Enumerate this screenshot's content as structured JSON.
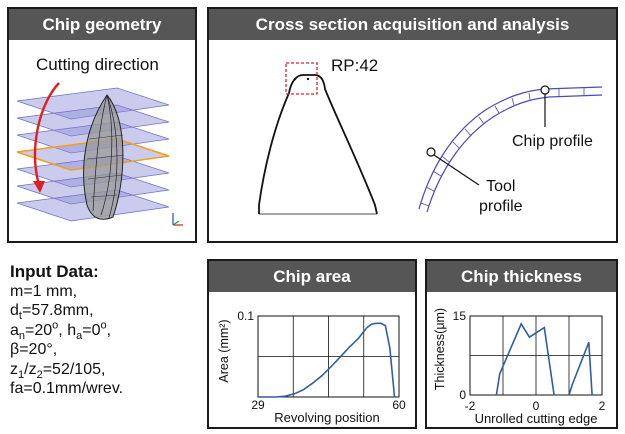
{
  "panels": {
    "geometry": {
      "title": "Chip geometry",
      "cutting_direction": "Cutting direction"
    },
    "cross_section": {
      "title": "Cross section acquisition and analysis",
      "rp_label": "RP:42",
      "chip_profile": "Chip profile",
      "tool_profile_line1": "Tool",
      "tool_profile_line2": "profile"
    },
    "chip_area": {
      "title": "Chip area",
      "ylabel": "Area (mm²)",
      "xlabel": "Revolving position",
      "y_top_tick": "0.1",
      "x_left_tick": "29",
      "x_right_tick": "60"
    },
    "chip_thickness": {
      "title": "Chip thickness",
      "ylabel": "Thickness(μm)",
      "xlabel": "Unrolled cutting edge",
      "y_top_tick": "15",
      "y_bottom_tick": "0",
      "x_left_tick": "-2",
      "x_mid_tick": "0",
      "x_right_tick": "2"
    }
  },
  "input_data": {
    "title": "Input Data:",
    "m": "m=1 mm,",
    "dt_sym": "d",
    "dt_sub": "t",
    "dt_val": "=57.8mm,",
    "an_sym": "a",
    "an_sub": "n",
    "an_val": "=20",
    "deg": "o",
    "sep": ", ",
    "ha_sym": "h",
    "ha_sub": "a",
    "ha_val": "=0",
    "ha_end": ",",
    "beta": "β=20°,",
    "z_sym1": "z",
    "z_sub1": "1",
    "z_slash": "/z",
    "z_sub2": "2",
    "z_val": "=52/105,",
    "fa": "fa=0.1mm/wrev."
  },
  "colors": {
    "header": "#565656",
    "curve": "#2f5f9e",
    "plane": "#8c8fd8",
    "red_arrow": "#e02020",
    "highlight_frame": "#f2a020"
  },
  "chart_data": [
    {
      "type": "line",
      "title": "Chip area",
      "xlabel": "Revolving position",
      "ylabel": "Area (mm²)",
      "xlim": [
        29,
        60
      ],
      "ylim": [
        0,
        0.1
      ],
      "x": [
        29,
        33,
        35,
        37,
        39,
        41,
        43,
        45,
        47,
        49,
        51,
        52,
        53,
        54,
        55,
        56,
        57,
        58,
        59
      ],
      "series": [
        {
          "values": [
            0,
            0,
            0.001,
            0.004,
            0.009,
            0.017,
            0.026,
            0.037,
            0.049,
            0.061,
            0.072,
            0.079,
            0.086,
            0.09,
            0.091,
            0.091,
            0.088,
            0.06,
            0
          ]
        }
      ]
    },
    {
      "type": "line",
      "title": "Chip thickness",
      "xlabel": "Unrolled cutting edge",
      "ylabel": "Thickness(μm)",
      "xlim": [
        -2,
        2
      ],
      "ylim": [
        0,
        15
      ],
      "series": [
        {
          "points": [
            [
              -1.2,
              0
            ],
            [
              -1.1,
              4
            ],
            [
              -0.45,
              13.5
            ],
            [
              -0.2,
              11
            ],
            [
              0.25,
              12.8
            ],
            [
              0.55,
              0
            ]
          ]
        },
        {
          "points": [
            [
              1.0,
              0
            ],
            [
              1.1,
              2
            ],
            [
              1.6,
              10
            ],
            [
              1.7,
              0
            ]
          ]
        }
      ]
    }
  ]
}
